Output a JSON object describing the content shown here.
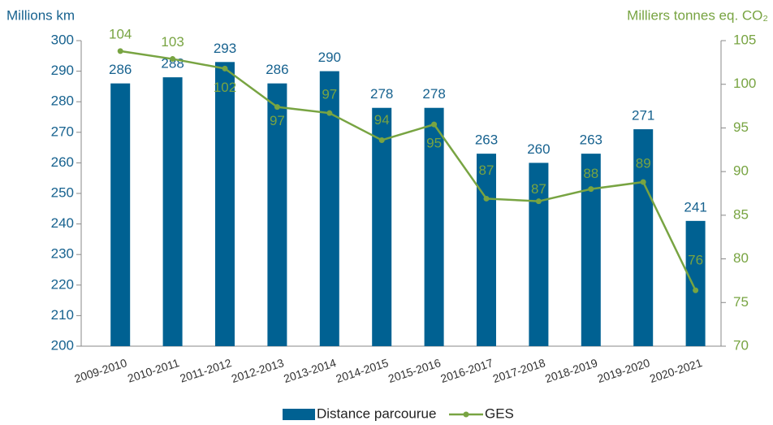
{
  "chart_data": {
    "type": "bar-line",
    "y_label": "Millions km",
    "y2_label": "Milliers tonnes eq. CO₂",
    "categories": [
      "2009-2010",
      "2010-2011",
      "2011-2012",
      "2012-2013",
      "2013-2014",
      "2014-2015",
      "2015-2016",
      "2016-2017",
      "2017-2018",
      "2018-2019",
      "2019-2020",
      "2020-2021"
    ],
    "series": [
      {
        "name": "Distance parcourue",
        "type": "bar",
        "color": "#006192",
        "values": [
          286,
          288,
          293,
          286,
          290,
          278,
          278,
          263,
          260,
          263,
          271,
          241
        ]
      },
      {
        "name": "GES",
        "type": "line",
        "axis": "y2",
        "color": "#78a442",
        "values": [
          103.8,
          102.9,
          101.8,
          97.4,
          96.7,
          93.6,
          95.4,
          86.9,
          86.6,
          88.0,
          88.8,
          76.4
        ],
        "value_labels": [
          "104",
          "103",
          "102",
          "97",
          "97",
          "94",
          "95",
          "87",
          "87",
          "88",
          "89",
          "76"
        ]
      }
    ],
    "ylim": [
      200,
      300
    ],
    "yticks": [
      200,
      210,
      220,
      230,
      240,
      250,
      260,
      270,
      280,
      290,
      300
    ],
    "y2lim": [
      70,
      105
    ],
    "y2ticks": [
      70,
      75,
      80,
      85,
      90,
      95,
      100,
      105
    ],
    "legend": "bottom"
  }
}
